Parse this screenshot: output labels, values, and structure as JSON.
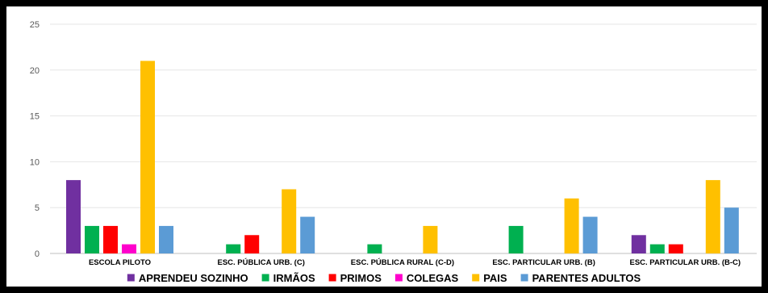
{
  "chart_data": {
    "type": "bar",
    "categories": [
      "ESCOLA PILOTO",
      "ESC. PÚBLICA URB. (C)",
      "ESC. PÚBLICA RURAL (C-D)",
      "ESC. PARTICULAR URB. (B)",
      "ESC. PARTICULAR URB. (B-C)"
    ],
    "series": [
      {
        "name": "APRENDEU SOZINHO",
        "color": "#7030A0",
        "values": [
          8,
          0,
          0,
          0,
          2
        ]
      },
      {
        "name": "IRMÃOS",
        "color": "#00B050",
        "values": [
          3,
          1,
          1,
          3,
          1
        ]
      },
      {
        "name": "PRIMOS",
        "color": "#FF0000",
        "values": [
          3,
          2,
          0,
          0,
          1
        ]
      },
      {
        "name": "COLEGAS",
        "color": "#FF00CC",
        "values": [
          1,
          0,
          0,
          0,
          0
        ]
      },
      {
        "name": "PAIS",
        "color": "#FFC000",
        "values": [
          21,
          7,
          3,
          6,
          8
        ]
      },
      {
        "name": "PARENTES ADULTOS",
        "color": "#5B9BD5",
        "values": [
          3,
          4,
          0,
          4,
          5
        ]
      }
    ],
    "ylim": [
      0,
      25
    ],
    "yticks": [
      0,
      5,
      10,
      15,
      20,
      25
    ],
    "grid": true,
    "legend": "bottom",
    "title": "",
    "xlabel": "",
    "ylabel": ""
  }
}
